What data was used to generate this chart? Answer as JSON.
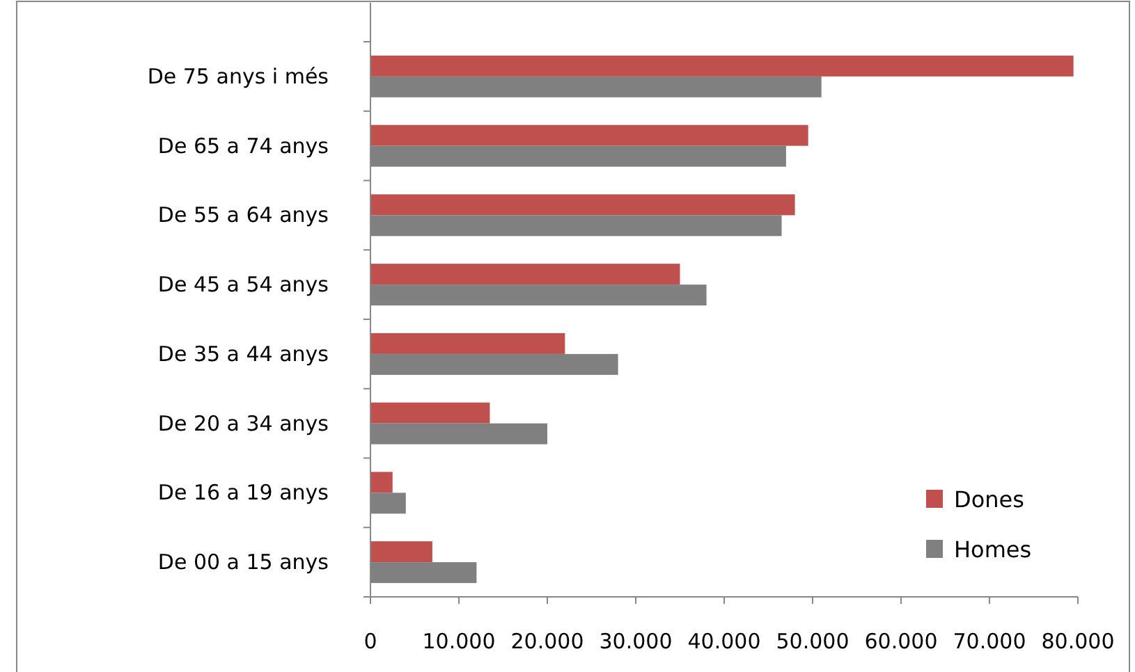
{
  "chart_data": {
    "type": "bar",
    "orientation": "horizontal",
    "categories": [
      "De 75 anys i més",
      "De 65 a 74 anys",
      "De 55 a 64 anys",
      "De 45 a 54 anys",
      "De 35 a 44 anys",
      "De 20 a 34 anys",
      "De 16 a 19 anys",
      "De 00 a 15 anys"
    ],
    "series": [
      {
        "name": "Dones",
        "color": "#c0504d",
        "values": [
          79500,
          49500,
          48000,
          35000,
          22000,
          13500,
          2500,
          7000
        ]
      },
      {
        "name": "Homes",
        "color": "#808080",
        "values": [
          51000,
          47000,
          46500,
          38000,
          28000,
          20000,
          4000,
          12000
        ]
      }
    ],
    "xlim": [
      0,
      80000
    ],
    "xticks": [
      0,
      {
        "value": 10000,
        "label": "10.000"
      },
      {
        "value": 20000,
        "label": "20.000"
      },
      {
        "value": 30000,
        "label": "30.000"
      },
      {
        "value": 40000,
        "label": "40.000"
      },
      {
        "value": 50000,
        "label": "50.000"
      },
      {
        "value": 60000,
        "label": "60.000"
      },
      {
        "value": 70000,
        "label": "70.000"
      },
      {
        "value": 80000,
        "label": "80.000"
      }
    ],
    "grid": false,
    "legend": "bottom right"
  }
}
